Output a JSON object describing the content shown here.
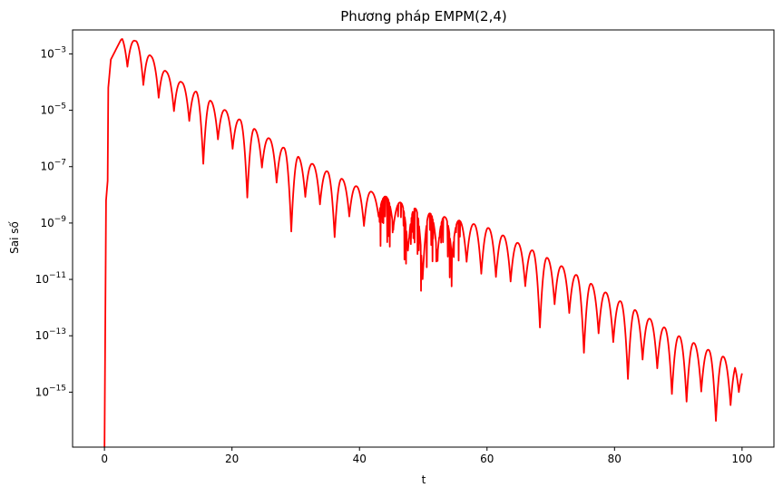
{
  "chart_data": {
    "type": "line",
    "title": "Phương pháp EMPM(2,4)",
    "xlabel": "t",
    "ylabel": "Sai số",
    "xlim": [
      -5,
      105
    ],
    "ylim_log10": [
      -16.95,
      -2.15
    ],
    "yscale": "log",
    "grid": false,
    "line_color": "#ff0000",
    "x_ticks": [
      0,
      20,
      40,
      60,
      80,
      100
    ],
    "x_tick_labels": [
      "0",
      "20",
      "40",
      "60",
      "80",
      "100"
    ],
    "y_tick_exponents": [
      -3,
      -5,
      -7,
      -9,
      -11,
      -13,
      -15
    ],
    "y_tick_base": "10",
    "y_tick_labels": [
      "−3",
      "−5",
      "−7",
      "−9",
      "−11",
      "−13",
      "−15"
    ],
    "envelope_log10": [
      [
        0,
        -17.2
      ],
      [
        0.25,
        -8.2
      ],
      [
        0.5,
        -7.5
      ],
      [
        0.6,
        -4.2
      ],
      [
        1.0,
        -3.2
      ],
      [
        2.8,
        -2.4
      ],
      [
        5,
        -2.55
      ],
      [
        10,
        -3.7
      ],
      [
        20,
        -5.15
      ],
      [
        30,
        -6.6
      ],
      [
        40,
        -7.75
      ],
      [
        44,
        -8.05
      ],
      [
        50,
        -8.6
      ],
      [
        60,
        -9.15
      ],
      [
        70,
        -10.3
      ],
      [
        80,
        -11.65
      ],
      [
        90,
        -13.0
      ],
      [
        100,
        -14.05
      ]
    ],
    "dip_t": [
      3.6,
      6.1,
      8.5,
      10.9,
      13.3,
      15.5,
      17.8,
      20.1,
      22.4,
      24.7,
      27.0,
      29.3,
      31.5,
      33.8,
      36.1,
      38.4,
      40.7,
      43.0,
      45.3,
      47.6,
      49.9,
      52.2,
      54.5,
      56.8,
      59.1,
      61.4,
      63.7,
      66.0,
      68.3,
      70.6,
      72.9,
      75.2,
      77.5,
      79.8,
      82.1,
      84.4,
      86.7,
      89.0,
      91.3,
      93.6,
      95.9,
      98.2,
      99.5
    ],
    "dip_depth_log10": [
      1.0,
      1.3,
      1.2,
      1.2,
      1.2,
      2.4,
      1.2,
      1.2,
      2.6,
      1.2,
      1.4,
      2.8,
      1.3,
      1.3,
      2.2,
      1.2,
      1.3,
      0.8,
      1.0,
      1.6,
      2.4,
      1.5,
      1.4,
      1.4,
      1.7,
      1.6,
      1.5,
      1.4,
      2.6,
      1.5,
      1.5,
      2.6,
      1.6,
      1.6,
      2.6,
      1.6,
      1.6,
      2.2,
      2.2,
      1.6,
      2.4,
      1.6,
      1.0
    ],
    "noise_region_t": [
      43,
      56
    ]
  }
}
